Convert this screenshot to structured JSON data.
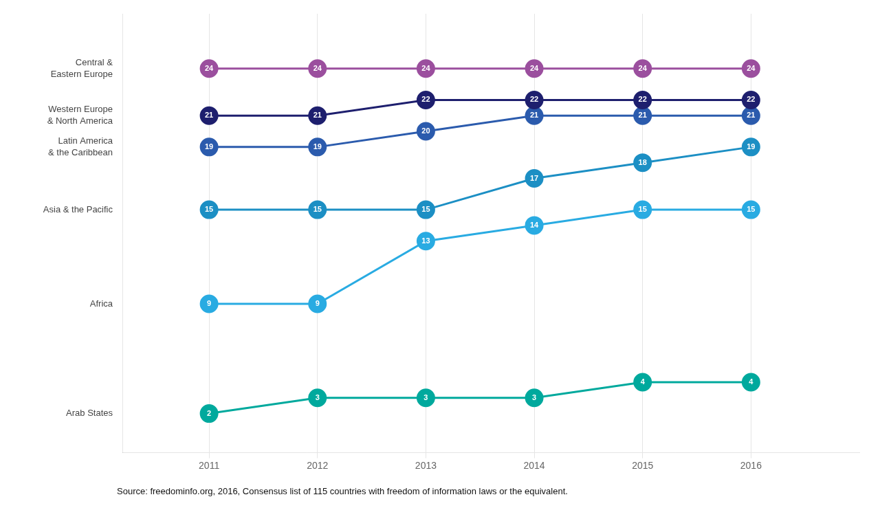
{
  "chart_data": {
    "type": "line",
    "x": [
      2011,
      2012,
      2013,
      2014,
      2015,
      2016
    ],
    "series": [
      {
        "name": "Central &\nEastern Europe",
        "color": "#9B4F9E",
        "values": [
          24,
          24,
          24,
          24,
          24,
          24
        ]
      },
      {
        "name": "Western Europe\n& North America",
        "color": "#1E1F6E",
        "values": [
          21,
          21,
          22,
          22,
          22,
          22
        ]
      },
      {
        "name": "Latin America\n& the Caribbean",
        "color": "#2B5BAD",
        "values": [
          19,
          19,
          20,
          21,
          21,
          21
        ]
      },
      {
        "name": "Asia & the Pacific",
        "color": "#1C8FC4",
        "values": [
          15,
          15,
          15,
          17,
          18,
          19
        ]
      },
      {
        "name": "Africa",
        "color": "#29ABE2",
        "values": [
          9,
          9,
          13,
          14,
          15,
          15
        ]
      },
      {
        "name": "Arab States",
        "color": "#00A99D",
        "values": [
          2,
          3,
          3,
          3,
          4,
          4
        ]
      }
    ],
    "xlim": [
      2010.2,
      2017.0
    ],
    "xticks": [
      2011,
      2012,
      2013,
      2014,
      2015,
      2016
    ],
    "ylim": [
      -0.5,
      27.5
    ],
    "yticks": [],
    "tick_labels": "x",
    "grid": true,
    "data_labels": true,
    "marker": "circle",
    "annotations": [
      "Source: freedominfo.org, 2016, Consensus list of 115 countries with freedom of information laws or the equivalent."
    ]
  }
}
